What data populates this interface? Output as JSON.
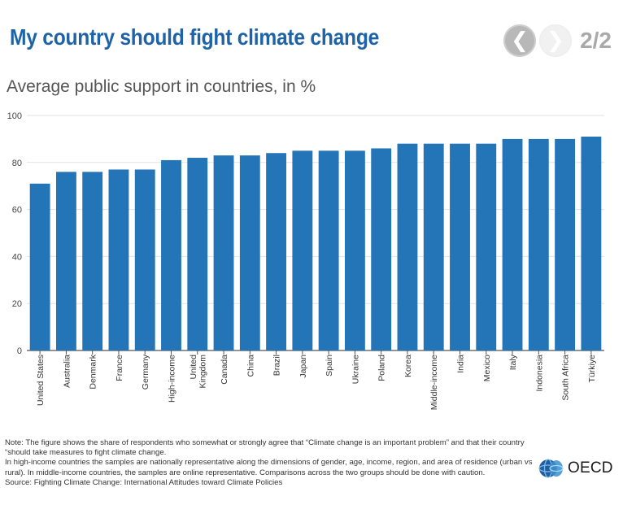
{
  "header": {
    "title": "My country should fight climate change",
    "pager": "2/2",
    "prev_icon": "chevron-left-icon",
    "next_icon": "chevron-right-icon"
  },
  "colors": {
    "title": "#1e63a8",
    "bar": "#2474b8",
    "grid": "#e1e1e1",
    "axis": "#555555"
  },
  "chart_data": {
    "type": "bar",
    "title": "Average public support in countries, in %",
    "xlabel": "",
    "ylabel": "",
    "ylim": [
      0,
      100
    ],
    "yticks": [
      0,
      20,
      40,
      60,
      80,
      100
    ],
    "grid": true,
    "categories": [
      "United States",
      "Australia",
      "Denmark",
      "France",
      "Germany",
      "High-income",
      "United Kingdom",
      "Canada",
      "China",
      "Brazil",
      "Japan",
      "Spain",
      "Ukraine",
      "Poland",
      "Korea",
      "Middle-income",
      "India",
      "Mexico",
      "Italy",
      "Indonesia",
      "South Africa",
      "Türkiye"
    ],
    "values": [
      71,
      76,
      76,
      77,
      77,
      81,
      82,
      83,
      83,
      84,
      85,
      85,
      85,
      86,
      88,
      88,
      88,
      88,
      90,
      90,
      90,
      91
    ]
  },
  "footer": {
    "note1": "Note: The figure shows the share of respondents who somewhat or strongly agree that “Climate change is an important problem” and that their country “should take measures to fight climate change.",
    "note2": "In high-income countries the samples are nationally representative along the dimensions of gender, age, income, region, and area of residence (urban vs rural). In middle-income countries, the samples are online representative. Comparisons across the two groups should be done with caution.",
    "source": "Source: Fighting Climate Change: International Attitudes toward Climate Policies"
  },
  "logo": {
    "text": "OECD",
    "icon": "oecd-globe-icon"
  }
}
